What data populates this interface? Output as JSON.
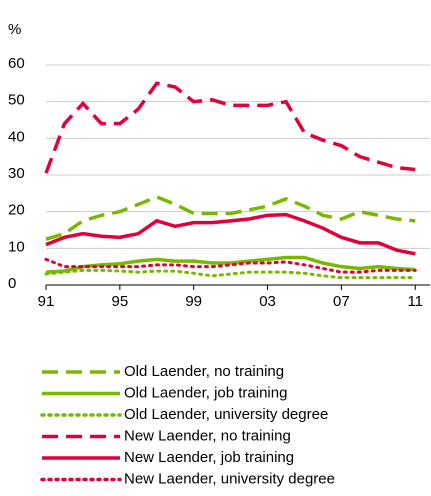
{
  "chart_data": {
    "type": "line",
    "y_label": "%",
    "x": [
      1991,
      1992,
      1993,
      1994,
      1995,
      1996,
      1997,
      1998,
      1999,
      2000,
      2001,
      2002,
      2003,
      2004,
      2005,
      2006,
      2007,
      2008,
      2009,
      2010,
      2011
    ],
    "xlim": [
      1991,
      2011.8
    ],
    "xticks": [
      {
        "value": 1991,
        "label": "91"
      },
      {
        "value": 1995,
        "label": "95"
      },
      {
        "value": 1999,
        "label": "99"
      },
      {
        "value": 2003,
        "label": "03"
      },
      {
        "value": 2007,
        "label": "07"
      },
      {
        "value": 2011,
        "label": "11"
      }
    ],
    "ylim": [
      0,
      60
    ],
    "yticks": [
      0,
      10,
      20,
      30,
      40,
      50,
      60
    ],
    "grid": true,
    "series": [
      {
        "name": "Old Laender, no training",
        "color": "#7ab800",
        "style": "dashed",
        "values": [
          12.5,
          14,
          17.5,
          19,
          20,
          22,
          24,
          22,
          19.5,
          19.5,
          19.5,
          20.5,
          21.5,
          23.5,
          21.5,
          19,
          18,
          20,
          19,
          18,
          17.5
        ]
      },
      {
        "name": "Old Laender, job training",
        "color": "#7ab800",
        "style": "solid",
        "values": [
          3.5,
          3.8,
          5,
          5.5,
          5.8,
          6.5,
          7,
          6.5,
          6.5,
          6,
          6,
          6.5,
          7,
          7.5,
          7.5,
          6,
          5,
          4.5,
          5,
          4.5,
          4.2
        ]
      },
      {
        "name": "Old Laender, university degree",
        "color": "#7ab800",
        "style": "dotted",
        "values": [
          3,
          3.5,
          4,
          4,
          3.8,
          3.5,
          3.8,
          3.8,
          3.2,
          2.5,
          3,
          3.5,
          3.5,
          3.5,
          3.2,
          2.5,
          2,
          2,
          2,
          2,
          2
        ]
      },
      {
        "name": "New Laender, no training",
        "color": "#e2003a",
        "style": "dashed",
        "values": [
          30.5,
          44,
          49.5,
          44,
          44,
          48,
          55,
          54,
          50,
          50.5,
          49,
          49,
          49,
          50,
          41.5,
          39.5,
          38,
          35,
          33.5,
          32,
          31.5
        ]
      },
      {
        "name": "New Laender, job training",
        "color": "#e2003a",
        "style": "solid",
        "values": [
          11,
          13,
          14,
          13.3,
          13,
          14,
          17.5,
          16,
          17,
          17,
          17.5,
          18,
          19,
          19.2,
          17.5,
          15.5,
          13,
          11.5,
          11.5,
          9.5,
          8.5
        ]
      },
      {
        "name": "New Laender, university degree",
        "color": "#e2003a",
        "style": "dotted",
        "values": [
          7,
          5,
          5,
          5,
          5,
          5,
          5.5,
          5.5,
          5,
          5,
          5.5,
          6,
          6,
          6.3,
          5.5,
          4.5,
          3.5,
          3.5,
          4,
          4,
          4
        ]
      }
    ]
  }
}
